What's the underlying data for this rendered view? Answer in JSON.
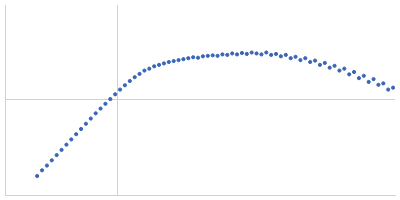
{
  "chart_data": {
    "type": "scatter",
    "color": "#3a66b5",
    "marker": "circle",
    "grid": true,
    "tick_labels": false,
    "xlim": [
      -1.15,
      2.85
    ],
    "ylim": [
      -1.01,
      0.99
    ],
    "xticks": [
      0
    ],
    "yticks": [
      0
    ],
    "x": [
      -0.82,
      -0.77,
      -0.72,
      -0.67,
      -0.62,
      -0.57,
      -0.52,
      -0.47,
      -0.42,
      -0.37,
      -0.32,
      -0.27,
      -0.22,
      -0.17,
      -0.12,
      -0.07,
      -0.02,
      0.03,
      0.08,
      0.13,
      0.18,
      0.23,
      0.28,
      0.33,
      0.38,
      0.43,
      0.48,
      0.53,
      0.58,
      0.63,
      0.68,
      0.73,
      0.78,
      0.83,
      0.88,
      0.93,
      0.98,
      1.03,
      1.08,
      1.13,
      1.18,
      1.23,
      1.28,
      1.33,
      1.38,
      1.43,
      1.48,
      1.53,
      1.58,
      1.63,
      1.68,
      1.73,
      1.78,
      1.83,
      1.88,
      1.93,
      1.98,
      2.03,
      2.08,
      2.13,
      2.18,
      2.23,
      2.28,
      2.33,
      2.38,
      2.43,
      2.48,
      2.53,
      2.58,
      2.63,
      2.68,
      2.73,
      2.78,
      2.83
    ],
    "values": [
      -0.81,
      -0.75,
      -0.7,
      -0.645,
      -0.59,
      -0.535,
      -0.48,
      -0.425,
      -0.37,
      -0.315,
      -0.26,
      -0.205,
      -0.15,
      -0.1,
      -0.05,
      0.0,
      0.05,
      0.1,
      0.145,
      0.19,
      0.23,
      0.265,
      0.3,
      0.32,
      0.345,
      0.36,
      0.375,
      0.39,
      0.4,
      0.41,
      0.42,
      0.43,
      0.44,
      0.435,
      0.45,
      0.455,
      0.46,
      0.455,
      0.47,
      0.465,
      0.48,
      0.47,
      0.485,
      0.475,
      0.49,
      0.48,
      0.47,
      0.49,
      0.465,
      0.475,
      0.45,
      0.465,
      0.43,
      0.445,
      0.41,
      0.43,
      0.39,
      0.405,
      0.36,
      0.38,
      0.33,
      0.35,
      0.3,
      0.32,
      0.26,
      0.285,
      0.22,
      0.245,
      0.18,
      0.21,
      0.15,
      0.165,
      0.1,
      0.12
    ]
  }
}
